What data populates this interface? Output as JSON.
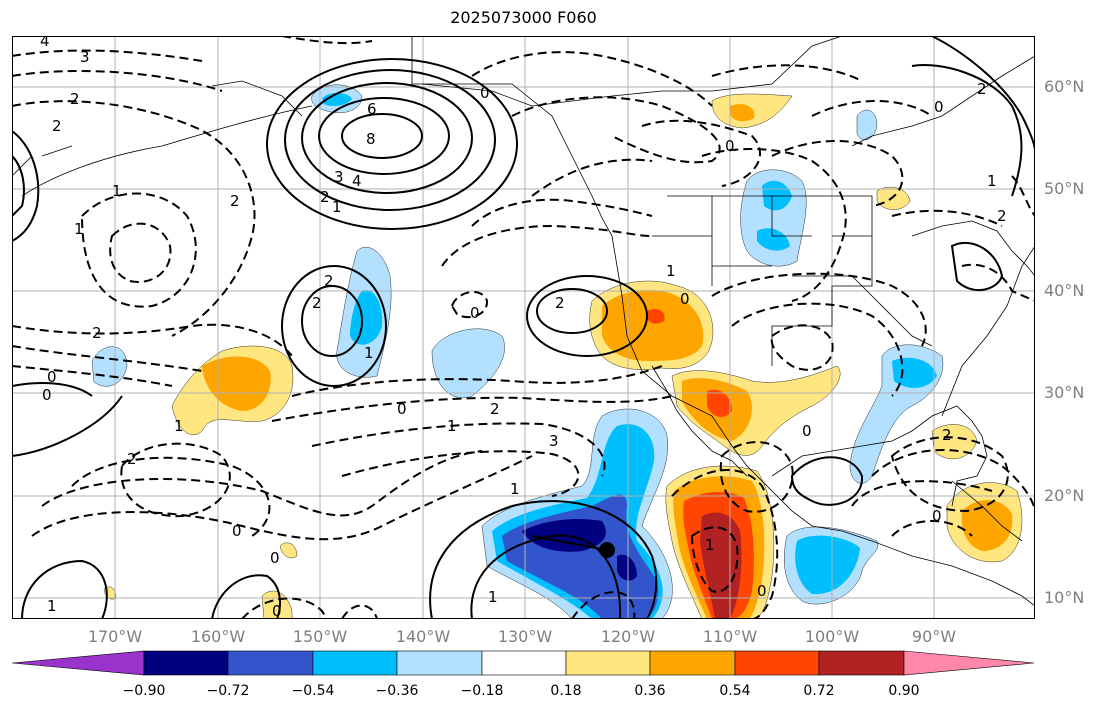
{
  "title": "2025073000 F060",
  "lat_labels": [
    "60°N",
    "50°N",
    "40°N",
    "30°N",
    "20°N",
    "10°N"
  ],
  "lon_labels": [
    "170°W",
    "160°W",
    "150°W",
    "140°W",
    "130°W",
    "120°W",
    "110°W",
    "100°W",
    "90°W"
  ],
  "colorbar": {
    "ticks": [
      "−0.90",
      "−0.72",
      "−0.54",
      "−0.36",
      "−0.18",
      "0.18",
      "0.36",
      "0.54",
      "0.72",
      "0.90"
    ],
    "colors": [
      "#9933cc",
      "#000080",
      "#3355cc",
      "#00bfff",
      "#b3e0ff",
      "#ffffff",
      "#ffe680",
      "#ffa500",
      "#ff4500",
      "#b22222",
      "#ff88aa"
    ]
  },
  "contour_labels": [
    "3",
    "4",
    "2",
    "2",
    "6",
    "8",
    "4",
    "3",
    "2",
    "1",
    "2",
    "2",
    "1",
    "2",
    "1",
    "2",
    "0",
    "0",
    "1",
    "0",
    "1",
    "1",
    "2",
    "2",
    "0",
    "0",
    "2",
    "3",
    "1",
    "1",
    "0",
    "0",
    "1",
    "0",
    "2",
    "1",
    "0",
    "0",
    "0",
    "1",
    "2",
    "1",
    "0",
    "0",
    "2",
    "0"
  ]
}
